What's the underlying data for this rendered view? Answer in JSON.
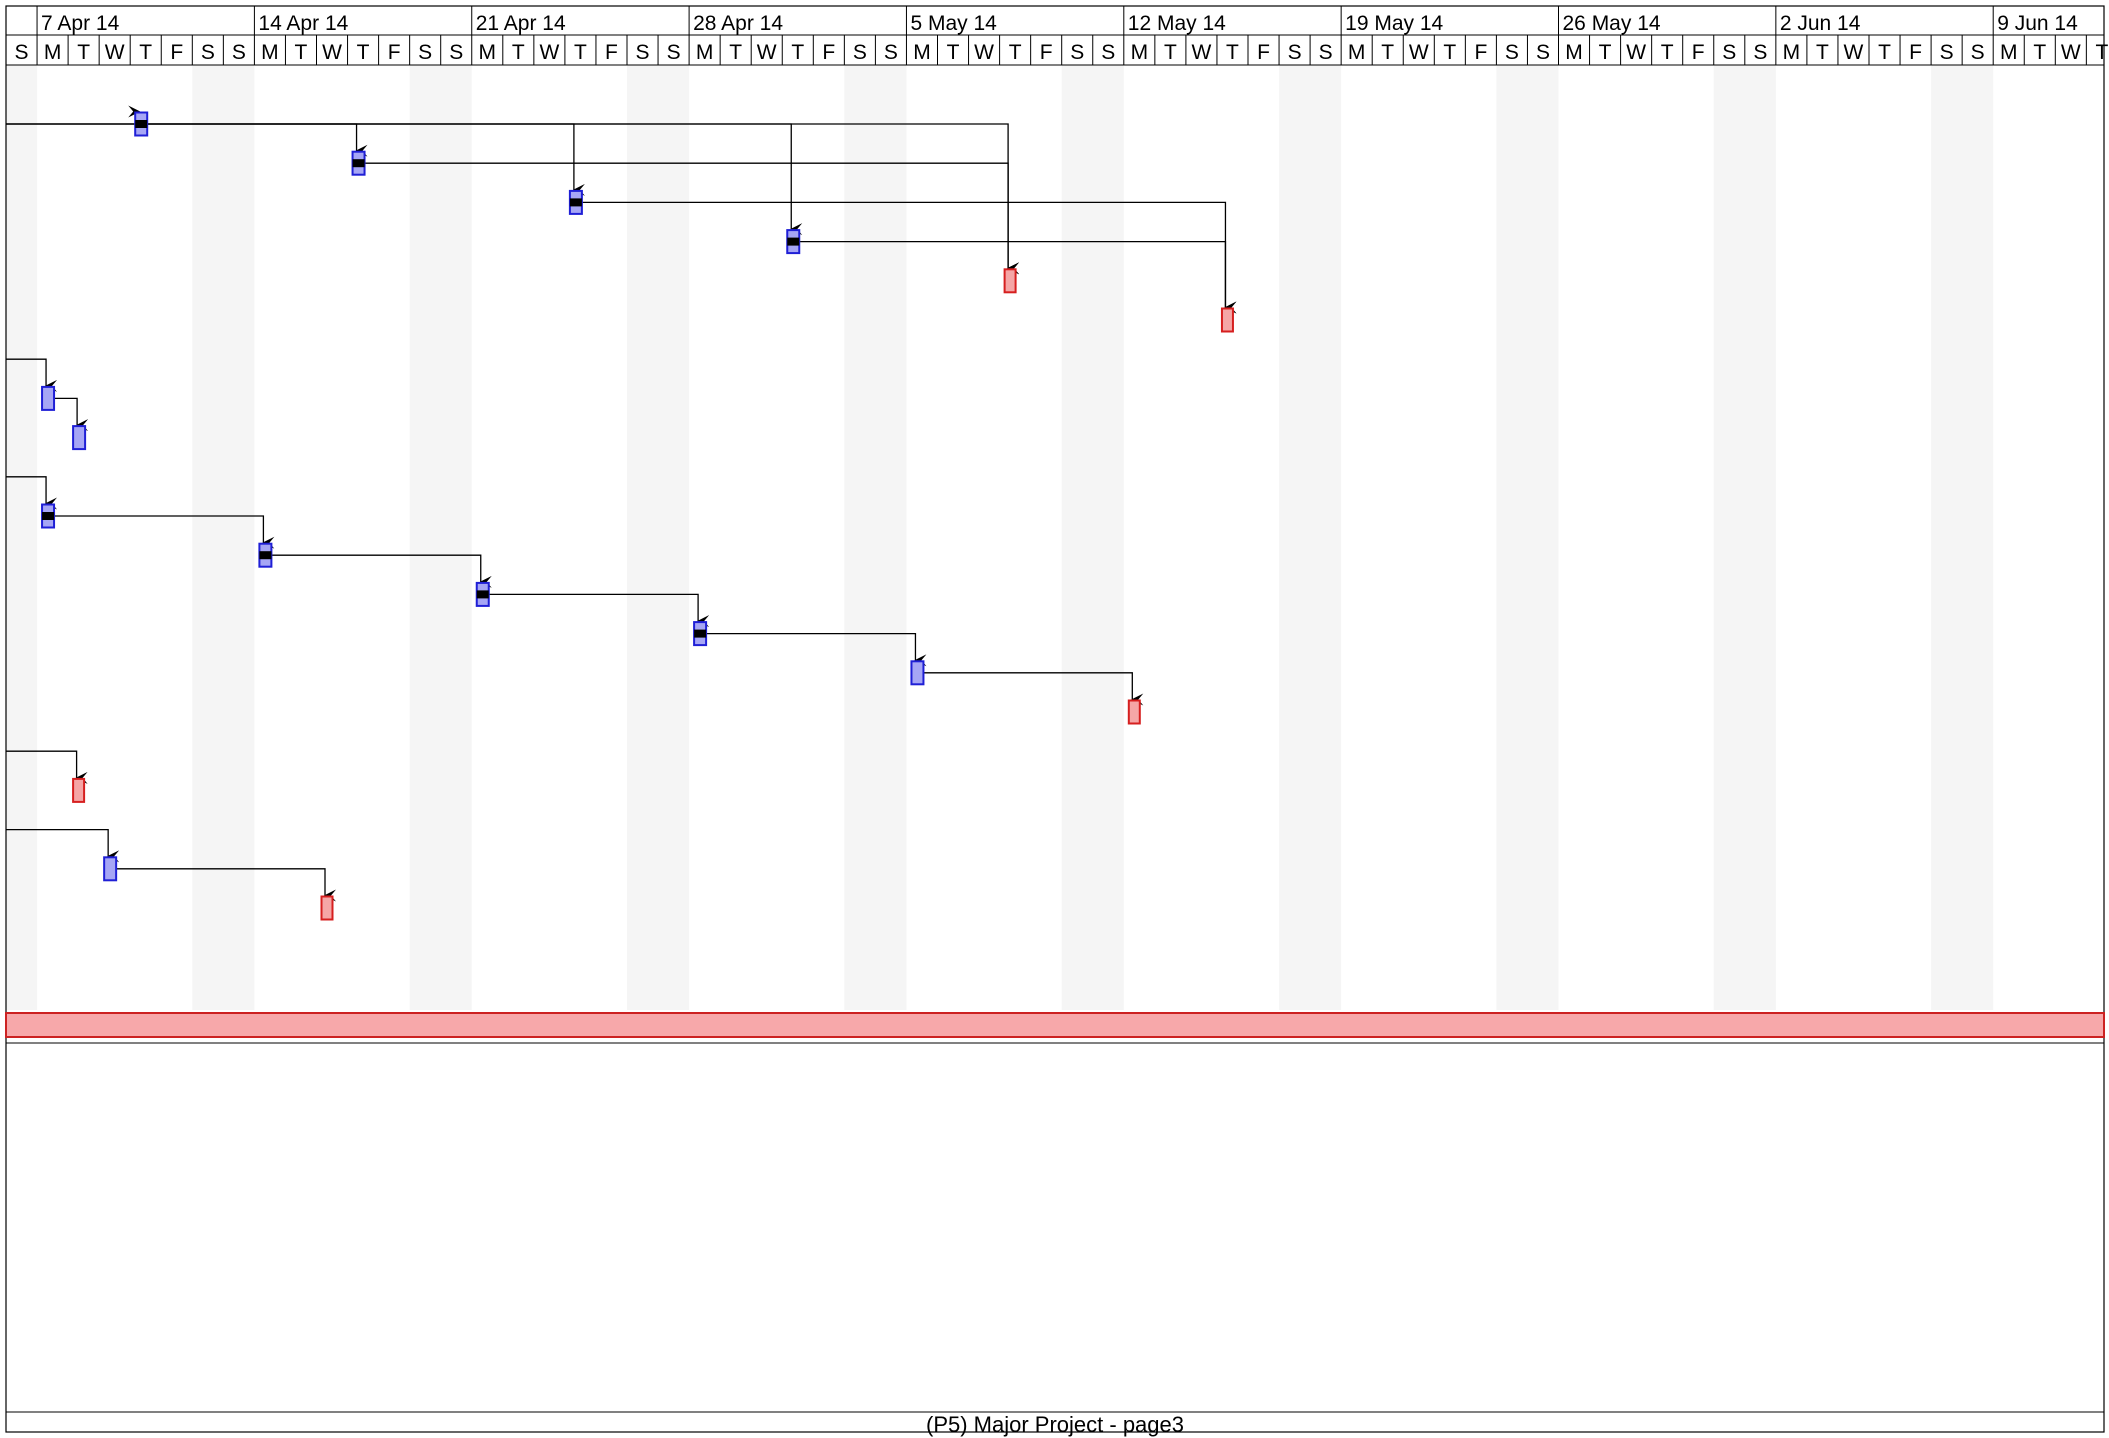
{
  "page": {
    "footer": "(P5) Major Project  -  page3"
  },
  "colors": {
    "task_fill": "#a6a6f5",
    "task_stroke": "#1f1fd6",
    "milestone_fill": "#f5a6a6",
    "milestone_stroke": "#d61f1f",
    "progress": "#000000",
    "weekend_shade": "#f5f5f5",
    "link": "#000000",
    "summary_fill": "#f7a8aa",
    "summary_stroke": "#cc2222"
  },
  "chart_data": {
    "type": "gantt",
    "timescale": {
      "start_day_letter": "S",
      "week_labels": [
        "7 Apr 14",
        "14 Apr 14",
        "21 Apr 14",
        "28 Apr 14",
        "5 May 14",
        "12 May 14",
        "19 May 14",
        "26 May 14",
        "2 Jun 14",
        "9 Jun 14"
      ],
      "day_letters": [
        "S",
        "M",
        "T",
        "W",
        "T",
        "F",
        "S",
        "S",
        "M",
        "T",
        "W",
        "T",
        "F",
        "S",
        "S",
        "M",
        "T",
        "W",
        "T",
        "F",
        "S",
        "S",
        "M",
        "T",
        "W",
        "T",
        "F",
        "S",
        "S",
        "M",
        "T",
        "W",
        "T",
        "F",
        "S",
        "S",
        "M",
        "T",
        "W",
        "T",
        "F",
        "S",
        "S",
        "M",
        "T",
        "W",
        "T",
        "F",
        "S",
        "S",
        "M",
        "T",
        "W",
        "T",
        "F",
        "S",
        "S",
        "M",
        "T",
        "W",
        "T",
        "F",
        "S",
        "S",
        "M",
        "T",
        "W",
        "T"
      ]
    },
    "bars": [
      {
        "id": "a1",
        "row": 1,
        "day": 4,
        "kind": "task",
        "progress": true,
        "from": "offpage"
      },
      {
        "id": "a2",
        "row": 2,
        "day": 11,
        "kind": "task",
        "progress": true,
        "from": "a1"
      },
      {
        "id": "a3",
        "row": 3,
        "day": 18,
        "kind": "task",
        "progress": true,
        "from": "offpage"
      },
      {
        "id": "a4",
        "row": 4,
        "day": 25,
        "kind": "task",
        "progress": true,
        "from": "offpage"
      },
      {
        "id": "a5",
        "row": 5,
        "day": 32,
        "kind": "milestone",
        "progress": false,
        "from": "a1,a2"
      },
      {
        "id": "a6",
        "row": 6,
        "day": 39,
        "kind": "milestone",
        "progress": false,
        "from": "a3,a4"
      },
      {
        "id": "b1",
        "row": 8,
        "day": 1,
        "kind": "task",
        "progress": false,
        "from": "offpage"
      },
      {
        "id": "b2",
        "row": 9,
        "day": 2,
        "kind": "task",
        "progress": false,
        "from": "b1"
      },
      {
        "id": "c1",
        "row": 11,
        "day": 1,
        "kind": "task",
        "progress": true,
        "from": "offpage"
      },
      {
        "id": "c2",
        "row": 12,
        "day": 8,
        "kind": "task",
        "progress": true,
        "from": "c1"
      },
      {
        "id": "c3",
        "row": 13,
        "day": 15,
        "kind": "task",
        "progress": true,
        "from": "c2"
      },
      {
        "id": "c4",
        "row": 14,
        "day": 22,
        "kind": "task",
        "progress": true,
        "from": "c3"
      },
      {
        "id": "c5",
        "row": 15,
        "day": 29,
        "kind": "task",
        "progress": false,
        "from": "c4"
      },
      {
        "id": "c6",
        "row": 16,
        "day": 36,
        "kind": "milestone",
        "progress": false,
        "from": "c5"
      },
      {
        "id": "d1",
        "row": 18,
        "day": 2,
        "kind": "milestone",
        "progress": false,
        "from": "offpage"
      },
      {
        "id": "e1",
        "row": 20,
        "day": 3,
        "kind": "task",
        "progress": false,
        "from": "offpage"
      },
      {
        "id": "e2",
        "row": 21,
        "day": 10,
        "kind": "milestone",
        "progress": false,
        "from": "e1"
      }
    ],
    "links": [
      {
        "from": "offpage",
        "to": "a1"
      },
      {
        "from": "offpage",
        "to": "a3"
      },
      {
        "from": "offpage",
        "to": "a4"
      },
      {
        "from": "a1",
        "to": "a2"
      },
      {
        "from": "a1",
        "to": "a5"
      },
      {
        "from": "a2",
        "to": "a5"
      },
      {
        "from": "a3",
        "to": "a6"
      },
      {
        "from": "a4",
        "to": "a6"
      },
      {
        "from": "offpage",
        "to": "b1"
      },
      {
        "from": "b1",
        "to": "b2"
      },
      {
        "from": "offpage",
        "to": "c1"
      },
      {
        "from": "c1",
        "to": "c2"
      },
      {
        "from": "c2",
        "to": "c3"
      },
      {
        "from": "c3",
        "to": "c4"
      },
      {
        "from": "c4",
        "to": "c5"
      },
      {
        "from": "c5",
        "to": "c6"
      },
      {
        "from": "offpage",
        "to": "d1"
      },
      {
        "from": "offpage",
        "to": "e1"
      },
      {
        "from": "e1",
        "to": "e2"
      }
    ],
    "summary_bar": {
      "kind": "summary",
      "spans": "full"
    },
    "grid": false,
    "weekend_shading": true
  }
}
